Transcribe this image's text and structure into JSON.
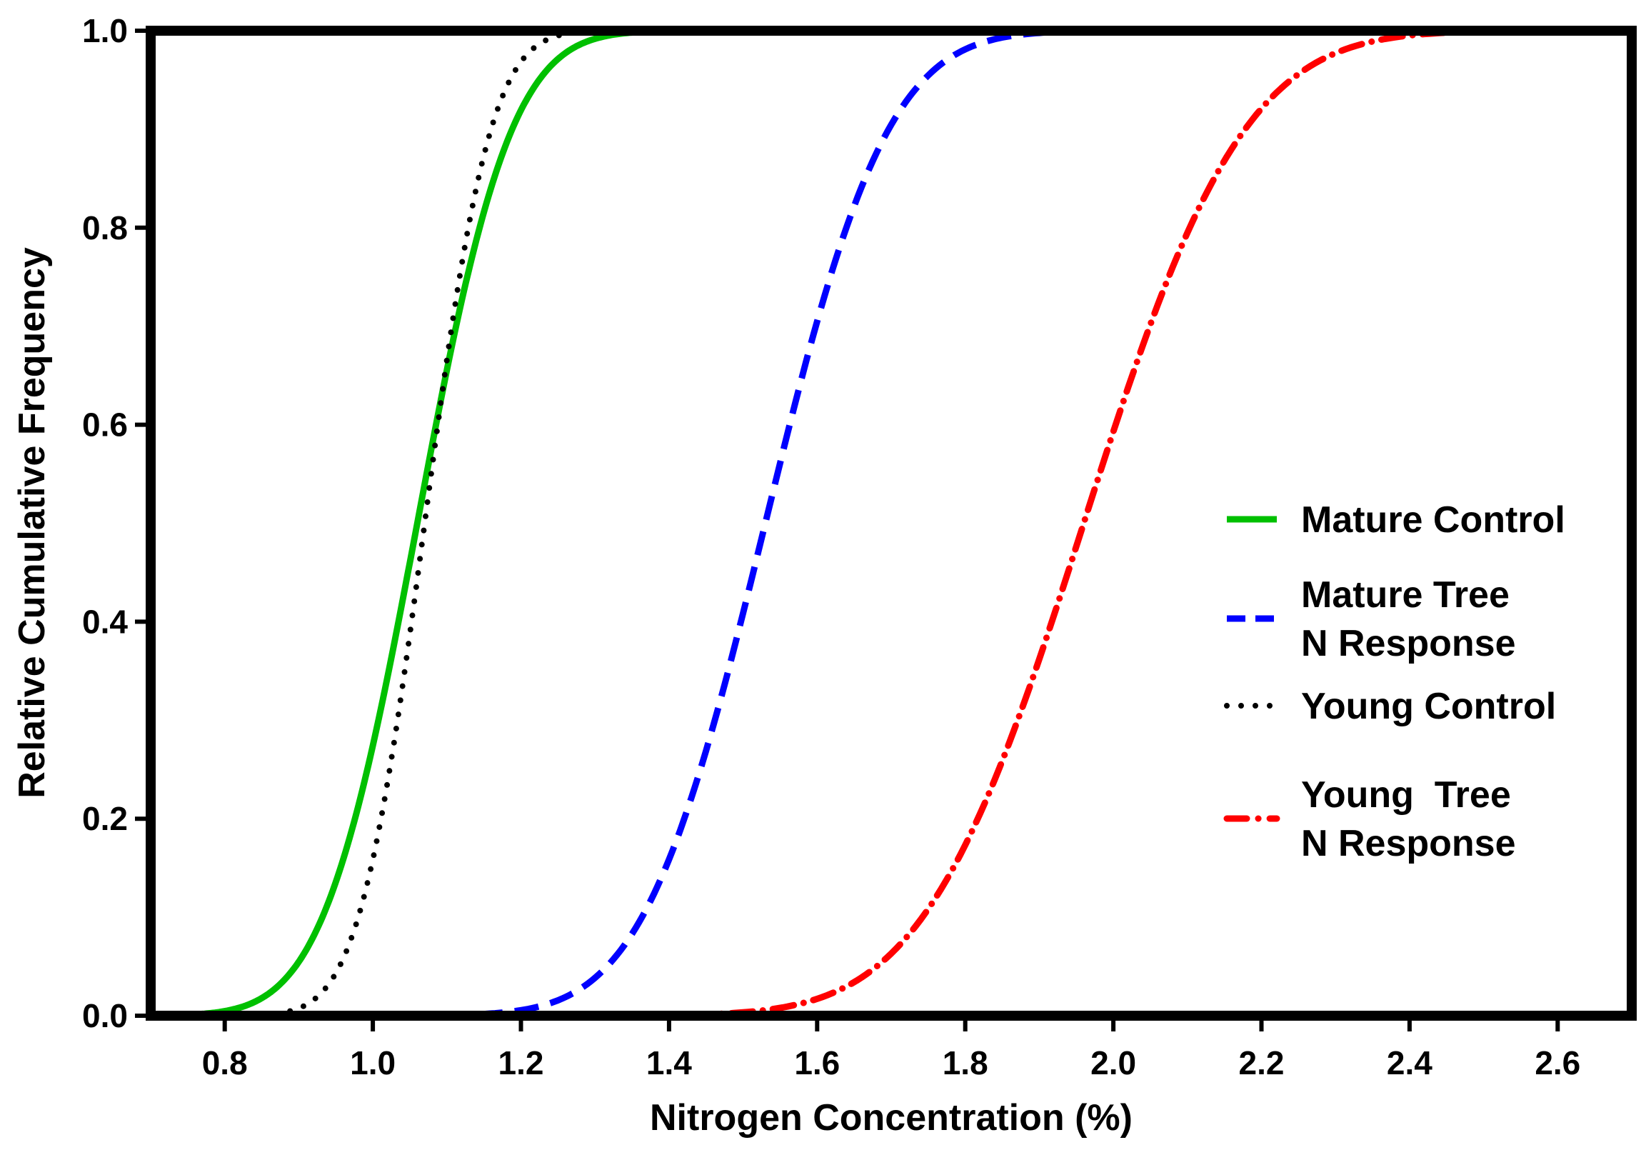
{
  "chart_data": {
    "type": "line",
    "title": "",
    "xlabel": "Nitrogen Concentration (%)",
    "ylabel": "Relative Cumulative Frequency",
    "xlim": [
      0.7,
      2.7
    ],
    "ylim": [
      0.0,
      1.0
    ],
    "x_ticks": [
      0.8,
      1.0,
      1.2,
      1.4,
      1.6,
      1.8,
      2.0,
      2.2,
      2.4,
      2.6
    ],
    "x_tick_labels": [
      "0.8",
      "1.0",
      "1.2",
      "1.4",
      "1.6",
      "1.8",
      "2.0",
      "2.2",
      "2.4",
      "2.6"
    ],
    "y_ticks": [
      0.0,
      0.2,
      0.4,
      0.6,
      0.8,
      1.0
    ],
    "y_tick_labels": [
      "0.0",
      "0.2",
      "0.4",
      "0.6",
      "0.8",
      "1.0"
    ],
    "grid": false,
    "legend_position": "right",
    "series": [
      {
        "name": "Mature Control",
        "legend_lines": [
          "Mature Control"
        ],
        "color": "#00c000",
        "style": "solid",
        "mean": 1.06,
        "sd": 0.1,
        "x_range": [
          0.7,
          1.54
        ]
      },
      {
        "name": "Mature Tree N Response",
        "legend_lines": [
          "Mature Tree",
          "N Response"
        ],
        "color": "#0000ff",
        "style": "dashed",
        "mean": 1.53,
        "sd": 0.13,
        "x_range": [
          0.7,
          2.2
        ]
      },
      {
        "name": "Young Control",
        "legend_lines": [
          "Young Control"
        ],
        "color": "#000000",
        "style": "dotted",
        "mean": 1.07,
        "sd": 0.07,
        "x_range": [
          0.85,
          1.3
        ]
      },
      {
        "name": "Young Tree N Response",
        "legend_lines": [
          "Young  Tree",
          "N Response"
        ],
        "color": "#ff0000",
        "style": "dashdot",
        "mean": 1.96,
        "sd": 0.17,
        "x_range": [
          0.7,
          2.7
        ]
      }
    ]
  }
}
